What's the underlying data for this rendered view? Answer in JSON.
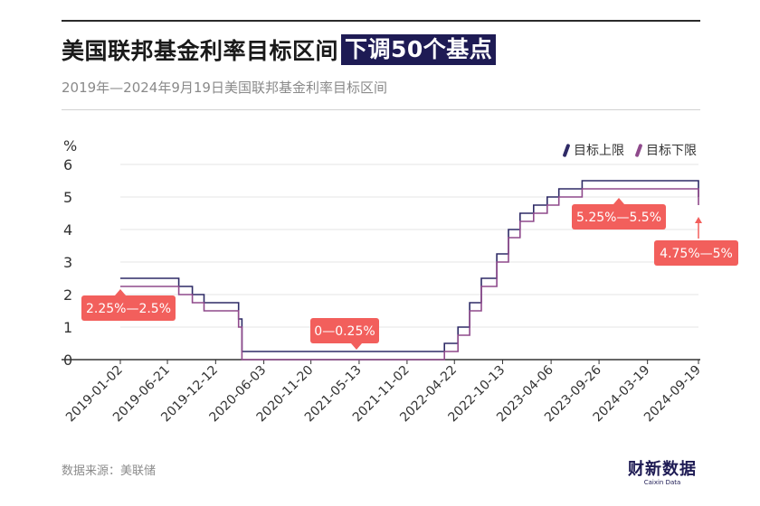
{
  "header": {
    "title_main": "美国联邦基金利率目标区间",
    "title_highlight": "下调50个基点",
    "subtitle": "2019年—2024年9月19日美国联邦基金利率目标区间"
  },
  "footer": {
    "source": "数据来源：美联储",
    "brand_cn": "财新数据",
    "brand_en": "Caixin Data"
  },
  "chart_data": {
    "type": "line",
    "step": true,
    "title": "美国联邦基金利率目标区间",
    "ylabel": "%",
    "ylim": [
      0,
      6
    ],
    "yticks": [
      0,
      1,
      2,
      3,
      4,
      5,
      6
    ],
    "xlim": [
      "2019-01-02",
      "2024-09-19"
    ],
    "x_tick_labels": [
      "2019-01-02",
      "2019-06-21",
      "2019-12-12",
      "2020-06-03",
      "2020-11-20",
      "2021-05-13",
      "2021-11-02",
      "2022-04-22",
      "2022-10-13",
      "2023-04-06",
      "2023-09-26",
      "2024-03-19",
      "2024-09-19"
    ],
    "grid": "horizontal",
    "legend_position": "top-right",
    "colors": {
      "upper": "#2e2a66",
      "lower": "#8f4a8c",
      "annotation": "#f25f5c",
      "grid": "#e6e6e6"
    },
    "series": [
      {
        "name": "目标上限",
        "points": [
          [
            "2019-01-02",
            2.5
          ],
          [
            "2019-08-01",
            2.25
          ],
          [
            "2019-09-19",
            2.0
          ],
          [
            "2019-10-31",
            1.75
          ],
          [
            "2020-03-04",
            1.25
          ],
          [
            "2020-03-16",
            0.25
          ],
          [
            "2022-03-17",
            0.5
          ],
          [
            "2022-05-05",
            1.0
          ],
          [
            "2022-06-16",
            1.75
          ],
          [
            "2022-07-28",
            2.5
          ],
          [
            "2022-09-22",
            3.25
          ],
          [
            "2022-11-03",
            4.0
          ],
          [
            "2022-12-15",
            4.5
          ],
          [
            "2023-02-02",
            4.75
          ],
          [
            "2023-03-23",
            5.0
          ],
          [
            "2023-05-04",
            5.25
          ],
          [
            "2023-07-27",
            5.5
          ],
          [
            "2024-09-19",
            5.0
          ]
        ]
      },
      {
        "name": "目标下限",
        "points": [
          [
            "2019-01-02",
            2.25
          ],
          [
            "2019-08-01",
            2.0
          ],
          [
            "2019-09-19",
            1.75
          ],
          [
            "2019-10-31",
            1.5
          ],
          [
            "2020-03-04",
            1.0
          ],
          [
            "2020-03-16",
            0.0
          ],
          [
            "2022-03-17",
            0.25
          ],
          [
            "2022-05-05",
            0.75
          ],
          [
            "2022-06-16",
            1.5
          ],
          [
            "2022-07-28",
            2.25
          ],
          [
            "2022-09-22",
            3.0
          ],
          [
            "2022-11-03",
            3.75
          ],
          [
            "2022-12-15",
            4.25
          ],
          [
            "2023-02-02",
            4.5
          ],
          [
            "2023-03-23",
            4.75
          ],
          [
            "2023-05-04",
            5.0
          ],
          [
            "2023-07-27",
            5.25
          ],
          [
            "2024-09-19",
            4.75
          ]
        ]
      }
    ],
    "annotations": [
      {
        "text": "2.25%—2.5%",
        "x": "2019-01-02",
        "y": 2.5
      },
      {
        "text": "0—0.25%",
        "x": "2021-05-13",
        "y": 0.25
      },
      {
        "text": "5.25%—5.5%",
        "x": "2023-12-15",
        "y": 5.5
      },
      {
        "text": "4.75%—5%",
        "x": "2024-09-19",
        "y": 5.0
      }
    ]
  }
}
